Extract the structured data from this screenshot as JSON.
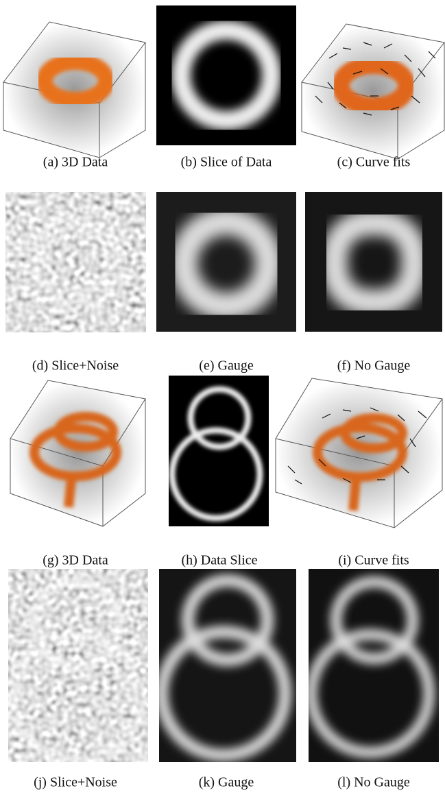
{
  "captions": [
    "(a) 3D Data",
    "(b) Slice of Data",
    "(c) Curve fits",
    "(d) Slice+Noise",
    "(e) Gauge",
    "(f) No Gauge",
    "(g) 3D Data",
    "(h) Data Slice",
    "(i) Curve fits",
    "(j) Slice+Noise",
    "(k) Gauge",
    "(l) No Gauge"
  ]
}
